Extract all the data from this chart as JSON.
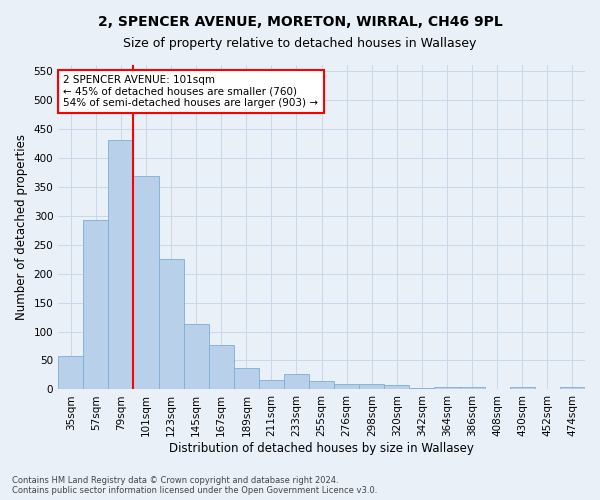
{
  "title_line1": "2, SPENCER AVENUE, MORETON, WIRRAL, CH46 9PL",
  "title_line2": "Size of property relative to detached houses in Wallasey",
  "xlabel": "Distribution of detached houses by size in Wallasey",
  "ylabel": "Number of detached properties",
  "footer_line1": "Contains HM Land Registry data © Crown copyright and database right 2024.",
  "footer_line2": "Contains public sector information licensed under the Open Government Licence v3.0.",
  "categories": [
    "35sqm",
    "57sqm",
    "79sqm",
    "101sqm",
    "123sqm",
    "145sqm",
    "167sqm",
    "189sqm",
    "211sqm",
    "233sqm",
    "255sqm",
    "276sqm",
    "298sqm",
    "320sqm",
    "342sqm",
    "364sqm",
    "386sqm",
    "408sqm",
    "430sqm",
    "452sqm",
    "474sqm"
  ],
  "values": [
    57,
    292,
    430,
    368,
    226,
    113,
    76,
    37,
    17,
    27,
    15,
    10,
    10,
    7,
    3,
    5,
    5,
    0,
    5,
    0,
    4
  ],
  "bar_color": "#b8d0ea",
  "bar_edge_color": "#7aafd4",
  "vline_x": 3,
  "vline_color": "red",
  "annotation_text": "2 SPENCER AVENUE: 101sqm\n← 45% of detached houses are smaller (760)\n54% of semi-detached houses are larger (903) →",
  "annotation_box_color": "white",
  "annotation_box_edge_color": "red",
  "ylim": [
    0,
    560
  ],
  "yticks": [
    0,
    50,
    100,
    150,
    200,
    250,
    300,
    350,
    400,
    450,
    500,
    550
  ],
  "grid_color": "#c8d8e8",
  "bg_color": "#eaf0f8",
  "title_fontsize": 10,
  "subtitle_fontsize": 9,
  "axis_label_fontsize": 8.5,
  "tick_fontsize": 7.5,
  "footer_fontsize": 6
}
